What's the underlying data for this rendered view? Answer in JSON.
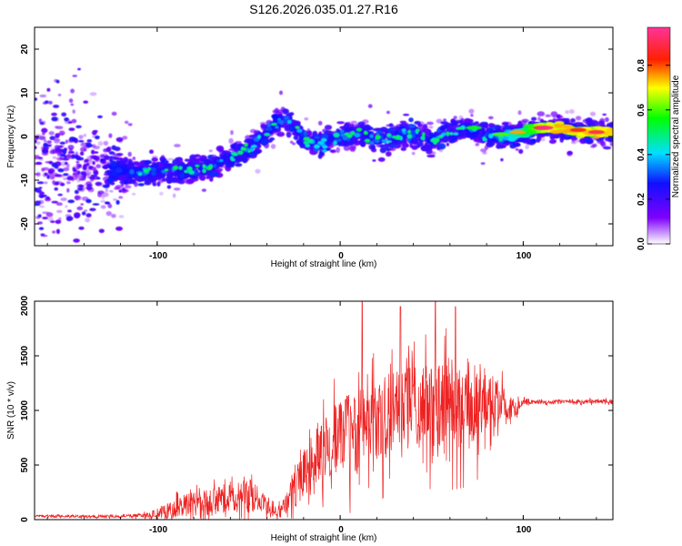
{
  "figure": {
    "title": "S126.2026.035.01.27.R16"
  },
  "chart_data": [
    {
      "type": "heatmap",
      "title": "S126.2026.035.01.27.R16",
      "xlabel": "Height of straight line (km)",
      "ylabel": "Frequency (Hz)",
      "xlim": [
        -167,
        149
      ],
      "ylim": [
        -25,
        25
      ],
      "x_ticks": [
        -100,
        0,
        100
      ],
      "x_tick_labels": [
        "-100",
        "0",
        "100"
      ],
      "y_ticks": [
        -20,
        -10,
        0,
        10,
        20
      ],
      "y_tick_labels": [
        "-20",
        "-10",
        "0",
        "10",
        "20"
      ],
      "colorbar": {
        "label": "Normalized spectral amplitude",
        "range": [
          0,
          0.97
        ],
        "ticks": [
          0,
          0.2,
          0.4,
          0.6,
          0.8
        ],
        "tick_labels": [
          "0.0",
          "0.2",
          "0.4",
          "0.6",
          "0.8"
        ],
        "colormap": "rainbow (white-purple-blue-cyan-green-yellow-red-pink)"
      },
      "ridge_frequency": {
        "x": [
          -167,
          -140,
          -120,
          -100,
          -85,
          -70,
          -60,
          -50,
          -42,
          -35,
          -30,
          -25,
          -18,
          -10,
          0,
          10,
          20,
          30,
          40,
          50,
          60,
          70,
          75,
          80,
          85,
          90,
          100,
          110,
          120,
          130,
          140,
          149
        ],
        "y": [
          -6,
          -7,
          -8,
          -8,
          -8,
          -7,
          -5,
          -3,
          0,
          3,
          4,
          2,
          -1,
          -2,
          0,
          1,
          -1,
          0,
          1,
          -1,
          1,
          2,
          1,
          0,
          0,
          0,
          1,
          2,
          2,
          1,
          1,
          1
        ]
      },
      "strong_segment_x": [
        80,
        149
      ],
      "strong_segment_peak_amplitude": 0.95
    },
    {
      "type": "line",
      "xlabel": "Height of straight line (km)",
      "ylabel": "SNR (10 * v/v)",
      "xlim": [
        -167,
        149
      ],
      "ylim": [
        0,
        2000
      ],
      "x_ticks": [
        -100,
        0,
        100
      ],
      "x_tick_labels": [
        "-100",
        "0",
        "100"
      ],
      "y_ticks": [
        0,
        500,
        1000,
        1500,
        2000
      ],
      "y_tick_labels": [
        "0",
        "500",
        "1000",
        "1500",
        "2000"
      ],
      "color": "#ee2222",
      "envelope": {
        "x": [
          -167,
          -120,
          -105,
          -95,
          -85,
          -70,
          -60,
          -50,
          -45,
          -40,
          -35,
          -30,
          -25,
          -20,
          -10,
          0,
          10,
          20,
          30,
          40,
          50,
          60,
          70,
          80,
          90,
          95,
          100,
          110,
          120,
          130,
          140,
          149
        ],
        "mean": [
          30,
          30,
          40,
          80,
          130,
          160,
          200,
          220,
          210,
          120,
          60,
          120,
          280,
          420,
          620,
          780,
          820,
          900,
          1000,
          1050,
          1050,
          1100,
          1100,
          1100,
          1050,
          1000,
          1080,
          1080,
          1080,
          1080,
          1080,
          1080
        ],
        "amplitude": [
          15,
          15,
          30,
          90,
          130,
          160,
          180,
          200,
          150,
          80,
          60,
          120,
          220,
          280,
          380,
          420,
          500,
          450,
          480,
          500,
          480,
          520,
          500,
          420,
          200,
          100,
          30,
          25,
          25,
          25,
          25,
          25
        ]
      },
      "notable_peaks": [
        {
          "x": 3,
          "y": 1100
        },
        {
          "x": 12,
          "y": 2000
        },
        {
          "x": 33,
          "y": 1950
        },
        {
          "x": 52,
          "y": 2000
        },
        {
          "x": 63,
          "y": 1950
        }
      ]
    }
  ]
}
